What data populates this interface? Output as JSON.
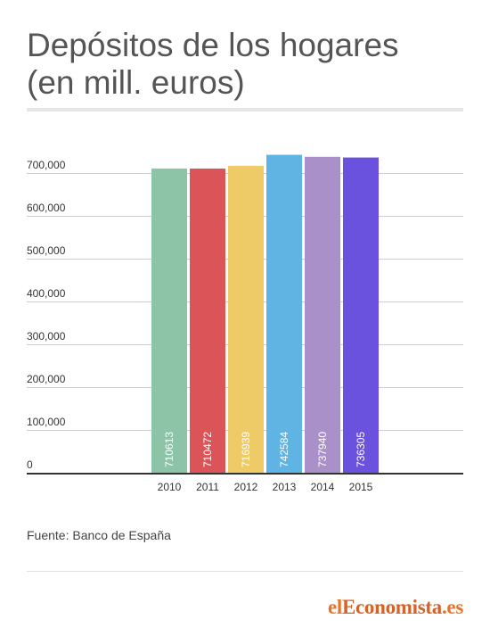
{
  "title_lines": [
    "Depósitos de los hogares",
    "(en mill. euros)"
  ],
  "source": "Fuente: Banco de España",
  "logo": {
    "prefix": "el",
    "brand": "Economista",
    "suffix": ".es"
  },
  "chart_data": {
    "type": "bar",
    "title": "Depósitos de los hogares (en mill. euros)",
    "categories": [
      "2010",
      "2011",
      "2012",
      "2013",
      "2014",
      "2015"
    ],
    "values": [
      710613,
      710472,
      716939,
      742584,
      737940,
      736305
    ],
    "data_labels": [
      "710613",
      "710472",
      "716939",
      "742584",
      "737940",
      "736305"
    ],
    "colors": [
      "#8dc3a7",
      "#db5458",
      "#efcb68",
      "#5fb4e4",
      "#a990c9",
      "#6a52de"
    ],
    "ylim": [
      0,
      700000
    ],
    "yticks": [
      0,
      100000,
      200000,
      300000,
      400000,
      500000,
      600000,
      700000
    ],
    "ytick_labels": [
      "0",
      "100,000",
      "200,000",
      "300,000",
      "400,000",
      "500,000",
      "600,000",
      "700,000"
    ],
    "xlabel": "",
    "ylabel": "",
    "grid": true,
    "legend": "none"
  }
}
